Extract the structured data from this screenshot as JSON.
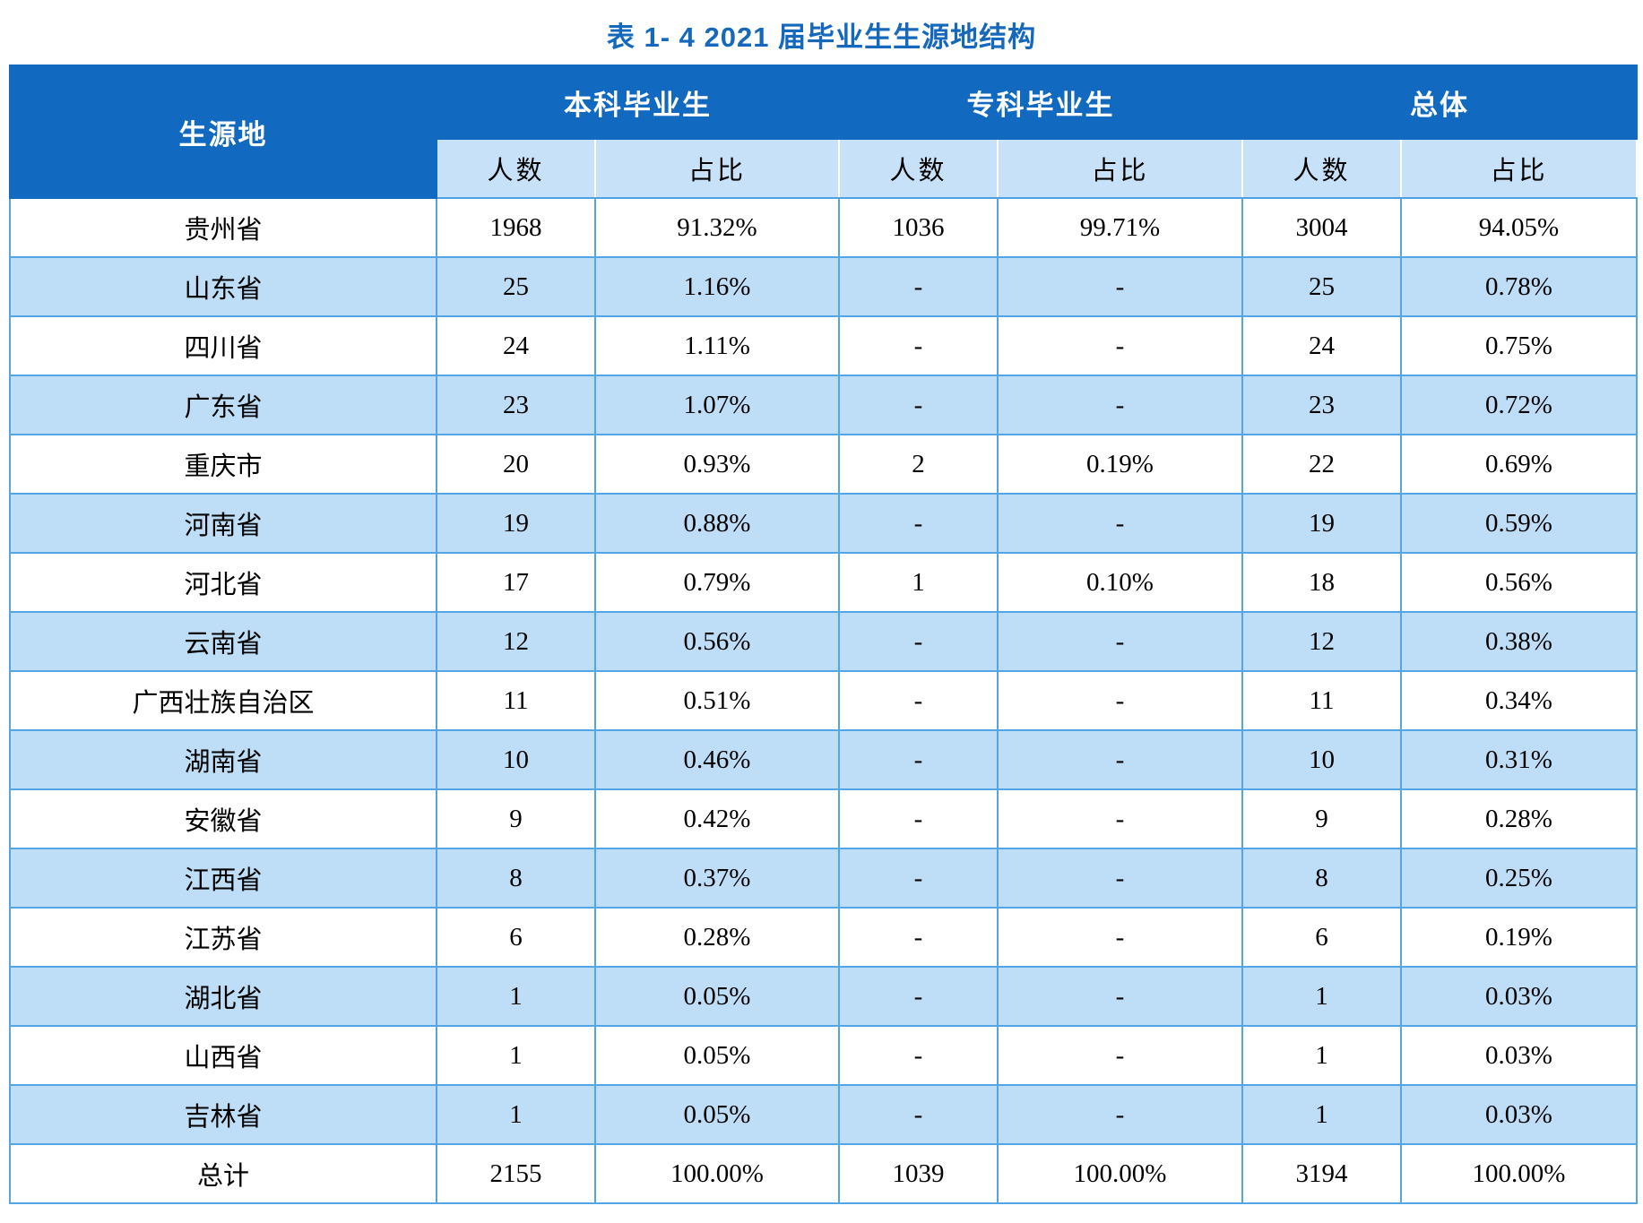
{
  "title": "表 1- 4  2021 届毕业生生源地结构",
  "colors": {
    "title_text": "#1568BC",
    "header_background": "#1169C0",
    "header_text": "#FFFFFF",
    "subheader_background": "#C7E2F8",
    "zebra_row_background": "#BEDDF6",
    "row_background": "#FFFFFF",
    "border": "#55A4E4",
    "body_text": "#000000"
  },
  "table": {
    "header": {
      "region": "生源地",
      "groups": [
        {
          "label": "本科毕业生"
        },
        {
          "label": "专科毕业生"
        },
        {
          "label": "总体"
        }
      ],
      "sub": {
        "count": "人数",
        "pct": "占比"
      }
    },
    "rows": [
      {
        "region": "贵州省",
        "values": [
          "1968",
          "91.32%",
          "1036",
          "99.71%",
          "3004",
          "94.05%"
        ]
      },
      {
        "region": "山东省",
        "values": [
          "25",
          "1.16%",
          "-",
          "-",
          "25",
          "0.78%"
        ]
      },
      {
        "region": "四川省",
        "values": [
          "24",
          "1.11%",
          "-",
          "-",
          "24",
          "0.75%"
        ]
      },
      {
        "region": "广东省",
        "values": [
          "23",
          "1.07%",
          "-",
          "-",
          "23",
          "0.72%"
        ]
      },
      {
        "region": "重庆市",
        "values": [
          "20",
          "0.93%",
          "2",
          "0.19%",
          "22",
          "0.69%"
        ]
      },
      {
        "region": "河南省",
        "values": [
          "19",
          "0.88%",
          "-",
          "-",
          "19",
          "0.59%"
        ]
      },
      {
        "region": "河北省",
        "values": [
          "17",
          "0.79%",
          "1",
          "0.10%",
          "18",
          "0.56%"
        ]
      },
      {
        "region": "云南省",
        "values": [
          "12",
          "0.56%",
          "-",
          "-",
          "12",
          "0.38%"
        ]
      },
      {
        "region": "广西壮族自治区",
        "values": [
          "11",
          "0.51%",
          "-",
          "-",
          "11",
          "0.34%"
        ]
      },
      {
        "region": "湖南省",
        "values": [
          "10",
          "0.46%",
          "-",
          "-",
          "10",
          "0.31%"
        ]
      },
      {
        "region": "安徽省",
        "values": [
          "9",
          "0.42%",
          "-",
          "-",
          "9",
          "0.28%"
        ]
      },
      {
        "region": "江西省",
        "values": [
          "8",
          "0.37%",
          "-",
          "-",
          "8",
          "0.25%"
        ]
      },
      {
        "region": "江苏省",
        "values": [
          "6",
          "0.28%",
          "-",
          "-",
          "6",
          "0.19%"
        ]
      },
      {
        "region": "湖北省",
        "values": [
          "1",
          "0.05%",
          "-",
          "-",
          "1",
          "0.03%"
        ]
      },
      {
        "region": "山西省",
        "values": [
          "1",
          "0.05%",
          "-",
          "-",
          "1",
          "0.03%"
        ]
      },
      {
        "region": "吉林省",
        "values": [
          "1",
          "0.05%",
          "-",
          "-",
          "1",
          "0.03%"
        ]
      }
    ],
    "total_row": {
      "region": "总计",
      "values": [
        "2155",
        "100.00%",
        "1039",
        "100.00%",
        "3194",
        "100.00%"
      ]
    }
  }
}
